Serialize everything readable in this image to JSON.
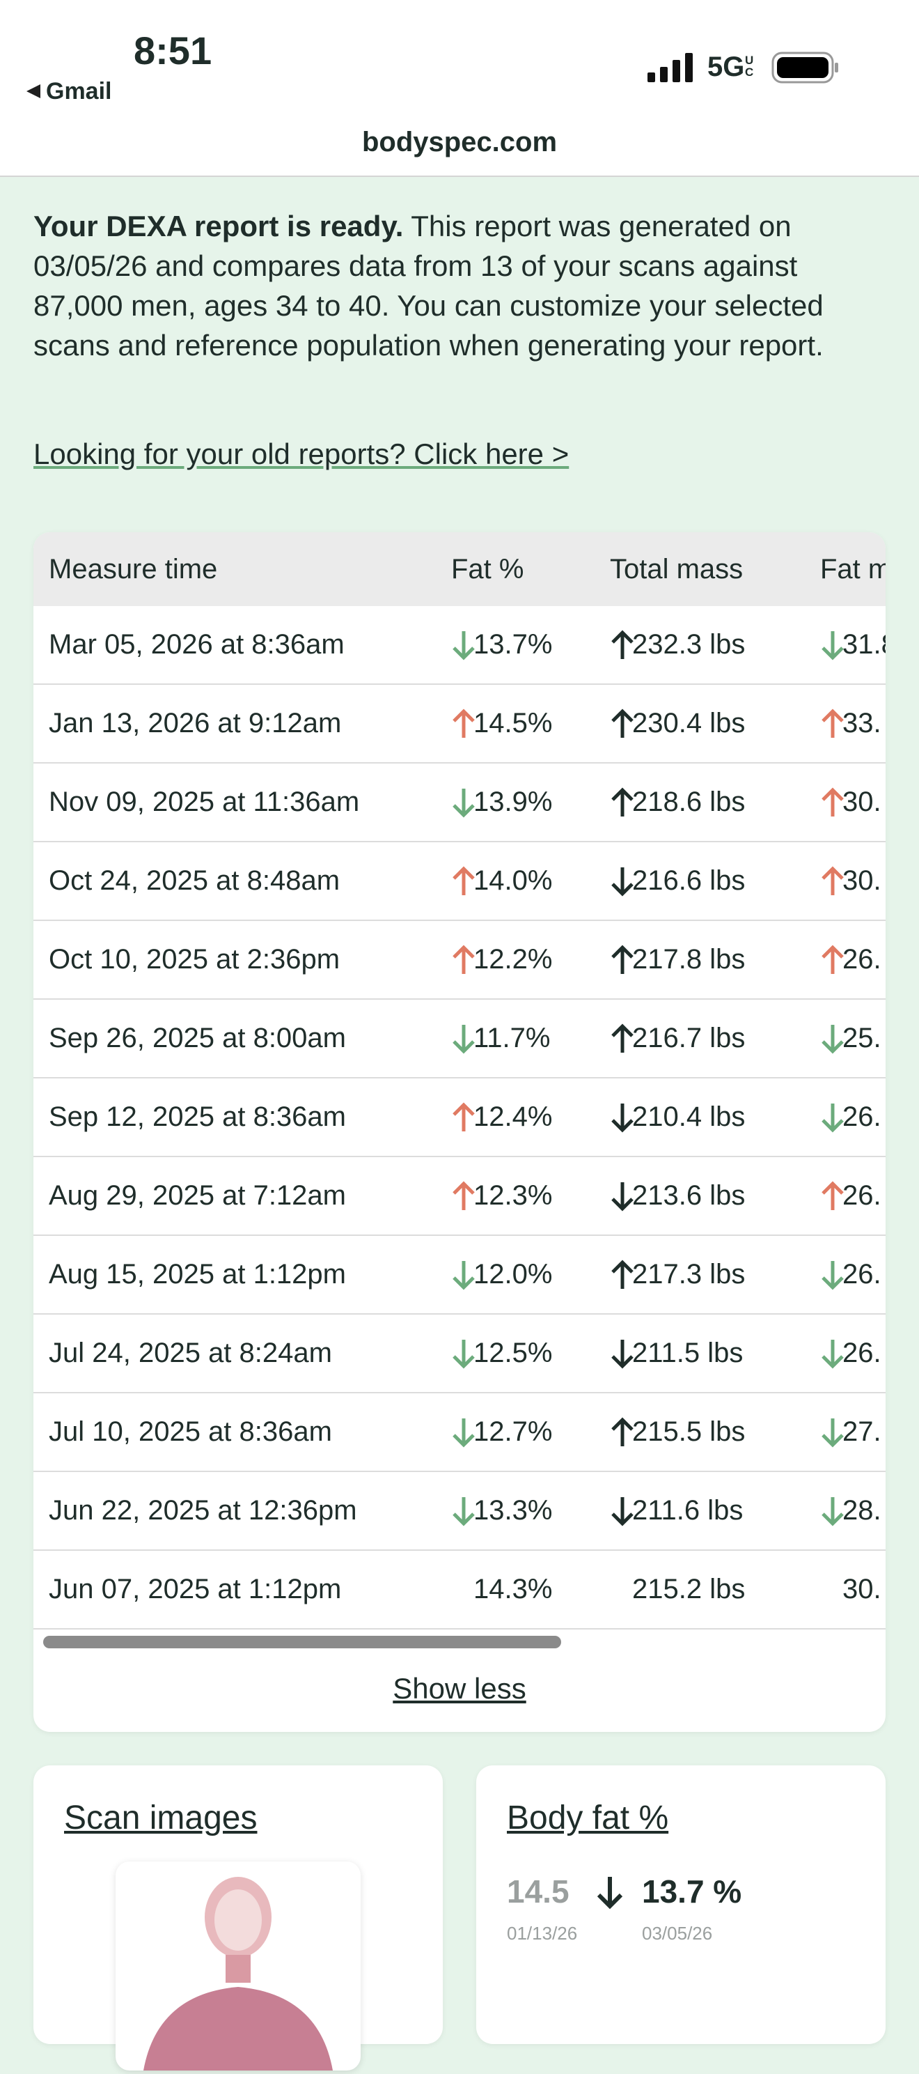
{
  "status": {
    "time": "8:51",
    "back": "Gmail",
    "network": "5G",
    "network_suffix": "UC"
  },
  "url": "bodyspec.com",
  "intro": {
    "bold": "Your DEXA report is ready.",
    "text": " This report was generated on 03/05/26 and compares data from 13 of your scans against 87,000 men, ages 34 to 40. You can customize your selected scans and reference population when generating your report.",
    "link": "Looking for your old reports? Click here >"
  },
  "table": {
    "headers": [
      "Measure time",
      "Fat %",
      "Total mass",
      "Fat m"
    ],
    "up_color": "#e07a62",
    "down_color": "#6cab7c",
    "neutral_color": "#1f2d2a",
    "rows": [
      [
        "Mar 05, 2026 at 8:36am",
        "down",
        "13.7%",
        "up",
        "232.3 lbs",
        "down",
        "31.8"
      ],
      [
        "Jan 13, 2026 at 9:12am",
        "up",
        "14.5%",
        "up",
        "230.4 lbs",
        "up",
        "33."
      ],
      [
        "Nov 09, 2025 at 11:36am",
        "down",
        "13.9%",
        "up",
        "218.6 lbs",
        "up",
        "30."
      ],
      [
        "Oct 24, 2025 at 8:48am",
        "up",
        "14.0%",
        "down",
        "216.6 lbs",
        "up",
        "30."
      ],
      [
        "Oct 10, 2025 at 2:36pm",
        "up",
        "12.2%",
        "up",
        "217.8 lbs",
        "up",
        "26."
      ],
      [
        "Sep 26, 2025 at 8:00am",
        "down",
        "11.7%",
        "up",
        "216.7 lbs",
        "down",
        "25."
      ],
      [
        "Sep 12, 2025 at 8:36am",
        "up",
        "12.4%",
        "down",
        "210.4 lbs",
        "down",
        "26."
      ],
      [
        "Aug 29, 2025 at 7:12am",
        "up",
        "12.3%",
        "down",
        "213.6 lbs",
        "up",
        "26."
      ],
      [
        "Aug 15, 2025 at 1:12pm",
        "down",
        "12.0%",
        "up",
        "217.3 lbs",
        "down",
        "26."
      ],
      [
        "Jul 24, 2025 at 8:24am",
        "down",
        "12.5%",
        "down",
        "211.5 lbs",
        "down",
        "26."
      ],
      [
        "Jul 10, 2025 at 8:36am",
        "down",
        "12.7%",
        "up",
        "215.5 lbs",
        "down",
        "27."
      ],
      [
        "Jun 22, 2025 at 12:36pm",
        "down",
        "13.3%",
        "down",
        "211.6 lbs",
        "down",
        "28."
      ],
      [
        "Jun 07, 2025 at 1:12pm",
        null,
        "14.3%",
        null,
        "215.2 lbs",
        null,
        "30."
      ]
    ],
    "toggle": "Show less"
  },
  "cards": {
    "scan_title": "Scan images",
    "fat_title": "Body fat %",
    "prev_value": "14.5",
    "prev_date": "01/13/26",
    "curr_value": "13.7 %",
    "curr_date": "03/05/26"
  }
}
